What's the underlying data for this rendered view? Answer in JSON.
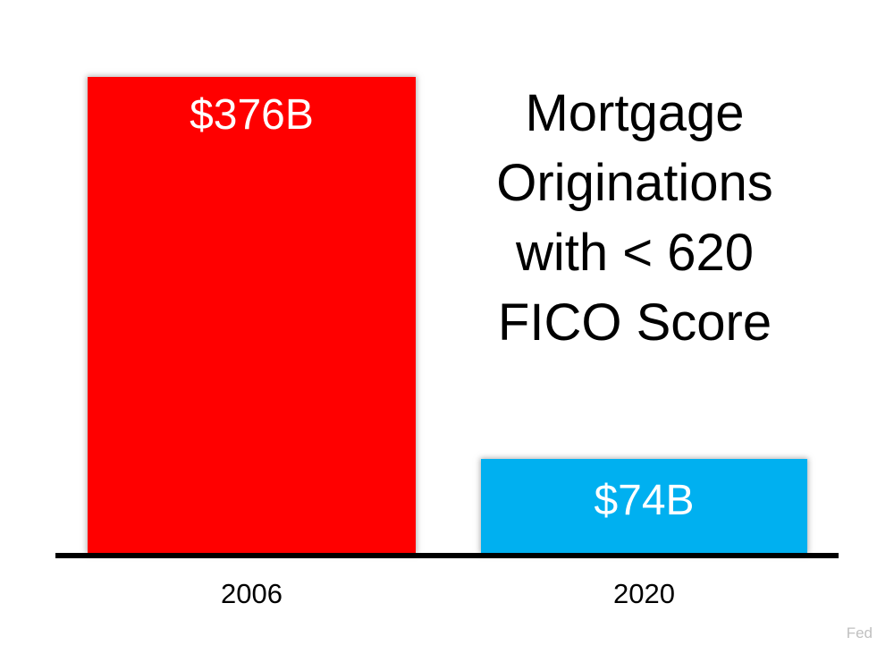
{
  "chart_data": {
    "type": "bar",
    "title": "Mortgage Originations with < 620 FICO Score",
    "title_lines": [
      "Mortgage",
      "Originations",
      "with < 620",
      "FICO Score"
    ],
    "categories": [
      "2006",
      "2020"
    ],
    "values": [
      376,
      74
    ],
    "value_labels": [
      "$376B",
      "$74B"
    ],
    "series": [
      {
        "name": "Mortgage originations with < 620 FICO score",
        "values": [
          376,
          74
        ]
      }
    ],
    "bar_colors": [
      "#ff0000",
      "#00b0f0"
    ],
    "value_label_color": "#ffffff",
    "axis_color": "#000000",
    "xlabel": "",
    "ylabel": "",
    "ylim": [
      0,
      400
    ],
    "grid": false,
    "legend_position": "none",
    "source": "Fed"
  },
  "colors": {
    "background": "#ffffff",
    "title_text": "#000000",
    "source_text": "#c0c0c0"
  }
}
